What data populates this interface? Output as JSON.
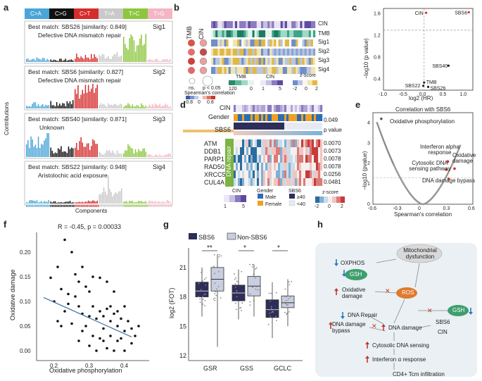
{
  "panel_letters": [
    "a",
    "b",
    "c",
    "d",
    "e",
    "f",
    "g",
    "h"
  ],
  "panel_a": {
    "mutation_classes": [
      {
        "label": "C>A",
        "color": "#4aa5d8"
      },
      {
        "label": "C>G",
        "color": "#111111"
      },
      {
        "label": "C>T",
        "color": "#d62c2c"
      },
      {
        "label": "T>A",
        "color": "#c9c9c9"
      },
      {
        "label": "T>C",
        "color": "#8dc63f"
      },
      {
        "label": "T>G",
        "color": "#f4b6c2"
      }
    ],
    "signatures": [
      {
        "name": "Sig1",
        "match": "Best match: SBS26 [similarity: 0.849]",
        "desc": "Defective DNA mismatch repair"
      },
      {
        "name": "Sig2",
        "match": "Best match: SBS6 [similarity: 0.827]",
        "desc": "Defective DNA mismatch repair"
      },
      {
        "name": "Sig3",
        "match": "Best match: SBS40 [similarity: 0.871]",
        "desc": "Unknown"
      },
      {
        "name": "Sig4",
        "match": "Best match: SBS22 [similarity: 0.948]",
        "desc": "Aristolochic acid exposure"
      }
    ],
    "ylabel": "Contributions",
    "xlabel": "Components"
  },
  "panel_b": {
    "rows_right": [
      "CIN",
      "TMB",
      "Sig1",
      "Sig2",
      "Sig3",
      "Sig4"
    ],
    "left_headers": [
      "TMB",
      "CIN"
    ],
    "legend_ns": "ns.",
    "legend_p": "p < 0.05",
    "legend_corr": "Spearman's correlation",
    "corr_ticks": [
      "-0.8",
      "0",
      "0.8"
    ],
    "tmb_title": "TMB",
    "tmb_ticks": [
      "120",
      "0"
    ],
    "cin_title": "CIN",
    "cin_ticks": [
      "1",
      "5"
    ],
    "z_title": "z-score",
    "z_ticks": [
      "-2",
      "0",
      "2"
    ]
  },
  "panel_c": {
    "chart_data": {
      "type": "scatter",
      "xlabel": "log2 (HR)",
      "ylabel": "−log10 (p value)",
      "xlim": [
        -1.0,
        1.2
      ],
      "ylim": [
        0.2,
        1.7
      ],
      "xticks": [
        "-1.0",
        "-0.5",
        "0.0",
        "0.5",
        "1.0"
      ],
      "yticks": [
        "0.4",
        "0.8",
        "1.2",
        "1.6"
      ],
      "points": [
        {
          "label": "CIN",
          "x": 0.05,
          "y": 1.62,
          "sig": true
        },
        {
          "label": "SBS6",
          "x": 1.1,
          "y": 1.63,
          "sig": true
        },
        {
          "label": "SBS40",
          "x": 0.6,
          "y": 0.65,
          "sig": false
        },
        {
          "label": "TMB",
          "x": 0.0,
          "y": 0.34,
          "sig": false
        },
        {
          "label": "SBS22",
          "x": -0.02,
          "y": 0.28,
          "sig": false
        },
        {
          "label": "SBS26",
          "x": 0.1,
          "y": 0.26,
          "sig": false
        }
      ]
    }
  },
  "panel_d": {
    "row_cin": "CIN",
    "row_gender": "Gender",
    "row_sbs6": "SBS6",
    "pvalue_title": "p value",
    "top_p": "0.049",
    "genes": [
      {
        "name": "ATM",
        "p": "0.0070"
      },
      {
        "name": "DDB1",
        "p": "0.0073"
      },
      {
        "name": "PARP1",
        "p": "0.0078"
      },
      {
        "name": "RAD50",
        "p": "0.0078"
      },
      {
        "name": "XRCC5",
        "p": "0.0256"
      },
      {
        "name": "CUL4A",
        "p": "0.0481"
      }
    ],
    "dna_repair": "DNA repair",
    "legend_cin": "CIN",
    "cin_ticks": [
      "1",
      "5"
    ],
    "legend_gender": "Gender",
    "gender_male": "Male",
    "gender_female": "Female",
    "legend_sbs6": "SBS6",
    "sbs6_hi": "≥40",
    "sbs6_lo": "<40",
    "legend_z": "z-score",
    "z_ticks": [
      "-2",
      "0",
      "2"
    ]
  },
  "panel_e": {
    "chart_data": {
      "type": "scatter",
      "title": "Correlation with SBS6",
      "xlabel": "Spearman's correlation",
      "ylabel": "−log10 (pvalue)",
      "xlim": [
        -0.6,
        0.6
      ],
      "ylim": [
        0,
        4.5
      ],
      "xticks": [
        "-0.6",
        "-0.3",
        "0",
        "0.3",
        "0.6"
      ],
      "yticks": [
        "0",
        "1",
        "2",
        "3",
        "4"
      ],
      "annotations": [
        {
          "text": "Oxidative phosphorylation",
          "x": -0.5,
          "y": 3.6
        },
        {
          "text": "Interferon alpha response",
          "x": 0.3,
          "y": 2.3
        },
        {
          "text": "Cytosolic DNA sensing pathway",
          "x": 0.25,
          "y": 1.9
        },
        {
          "text": "Oxidative damage",
          "x": 0.4,
          "y": 1.8
        },
        {
          "text": "DNA damage bypass",
          "x": 0.35,
          "y": 1.0
        }
      ]
    }
  },
  "panel_f": {
    "chart_data": {
      "type": "scatter",
      "annotation": "R = -0.45, p = 0.00033",
      "xlabel": "Oxidative phosphorylation",
      "ylabel": "Oxidative damage",
      "xlim": [
        0.15,
        0.47
      ],
      "ylim": [
        -0.02,
        0.24
      ],
      "xticks": [
        "0.2",
        "0.3",
        "0.4"
      ],
      "yticks": [
        "0.00",
        "0.05",
        "0.10",
        "0.15",
        "0.20"
      ],
      "fit": {
        "x": [
          0.17,
          0.42
        ],
        "y": [
          0.108,
          0.028
        ]
      },
      "points": [
        [
          0.19,
          0.148
        ],
        [
          0.21,
          0.17
        ],
        [
          0.23,
          0.225
        ],
        [
          0.25,
          0.2
        ],
        [
          0.26,
          0.155
        ],
        [
          0.28,
          0.17
        ],
        [
          0.2,
          0.1
        ],
        [
          0.22,
          0.125
        ],
        [
          0.24,
          0.115
        ],
        [
          0.27,
          0.14
        ],
        [
          0.29,
          0.13
        ],
        [
          0.3,
          0.12
        ],
        [
          0.31,
          0.15
        ],
        [
          0.33,
          0.148
        ],
        [
          0.35,
          0.14
        ],
        [
          0.37,
          0.12
        ],
        [
          0.21,
          0.06
        ],
        [
          0.23,
          0.08
        ],
        [
          0.25,
          0.055
        ],
        [
          0.27,
          0.09
        ],
        [
          0.28,
          0.075
        ],
        [
          0.29,
          0.05
        ],
        [
          0.3,
          0.07
        ],
        [
          0.31,
          0.09
        ],
        [
          0.32,
          0.065
        ],
        [
          0.33,
          0.08
        ],
        [
          0.34,
          0.07
        ],
        [
          0.34,
          0.045
        ],
        [
          0.35,
          0.085
        ],
        [
          0.36,
          0.06
        ],
        [
          0.36,
          0.09
        ],
        [
          0.37,
          0.075
        ],
        [
          0.38,
          0.08
        ],
        [
          0.38,
          0.05
        ],
        [
          0.39,
          0.065
        ],
        [
          0.4,
          0.09
        ],
        [
          0.4,
          0.04
        ],
        [
          0.41,
          0.06
        ],
        [
          0.42,
          0.045
        ],
        [
          0.27,
          0.02
        ],
        [
          0.28,
          0.04
        ],
        [
          0.3,
          0.01
        ],
        [
          0.31,
          0.03
        ],
        [
          0.32,
          0.0
        ],
        [
          0.33,
          0.025
        ],
        [
          0.34,
          0.02
        ],
        [
          0.35,
          0.005
        ],
        [
          0.36,
          0.03
        ],
        [
          0.37,
          0.0
        ],
        [
          0.38,
          0.02
        ],
        [
          0.39,
          0.025
        ],
        [
          0.4,
          0.0
        ],
        [
          0.42,
          0.015
        ],
        [
          0.26,
          0.11
        ],
        [
          0.24,
          0.095
        ],
        [
          0.22,
          0.05
        ],
        [
          0.44,
          0.05
        ],
        [
          0.43,
          0.03
        ]
      ]
    }
  },
  "panel_g": {
    "legend": [
      {
        "label": "SBS6",
        "color": "#2e2e5a"
      },
      {
        "label": "Non-SBS6",
        "color": "#c9cee0"
      }
    ],
    "chart_data": {
      "type": "box",
      "ylabel": "log2 (FOT)",
      "ylim": [
        11.5,
        23
      ],
      "yticks": [
        "12",
        "15",
        "18",
        "21"
      ],
      "categories": [
        "GSR",
        "GSS",
        "GCLC"
      ],
      "significance": [
        "**",
        "*",
        "*"
      ],
      "series": [
        {
          "name": "SBS6",
          "boxes": [
            {
              "q1": 18.0,
              "med": 18.6,
              "q3": 19.5,
              "lo": 16.0,
              "hi": 21.0
            },
            {
              "q1": 17.6,
              "med": 18.4,
              "q3": 19.2,
              "lo": 15.7,
              "hi": 20.8
            },
            {
              "q1": 15.9,
              "med": 16.7,
              "q3": 17.7,
              "lo": 13.8,
              "hi": 19.5
            }
          ]
        },
        {
          "name": "Non-SBS6",
          "boxes": [
            {
              "q1": 18.6,
              "med": 19.8,
              "q3": 21.0,
              "lo": 12.9,
              "hi": 22.3
            },
            {
              "q1": 18.1,
              "med": 19.1,
              "q3": 20.1,
              "lo": 16.0,
              "hi": 21.3
            },
            {
              "q1": 16.9,
              "med": 17.4,
              "q3": 18.1,
              "lo": 15.0,
              "hi": 19.8
            }
          ]
        }
      ]
    }
  },
  "panel_h": {
    "mito": "Mitochondrial dysfunction",
    "oxphos": "OXPHOS",
    "gsh": "GSH",
    "ros": "ROS",
    "ox_damage": "Oxidative damage",
    "dna_repair": "DNA Repair",
    "dna_damage_bypass": "DNA damage bypass",
    "dna_damage": "DNA damage",
    "sbs6": "SBS6",
    "cin": "CIN",
    "cytosolic": "Cytosolic DNA sensing",
    "interferon": "Interferon α response",
    "tcm": "CD4+ Tcm infiltration"
  }
}
